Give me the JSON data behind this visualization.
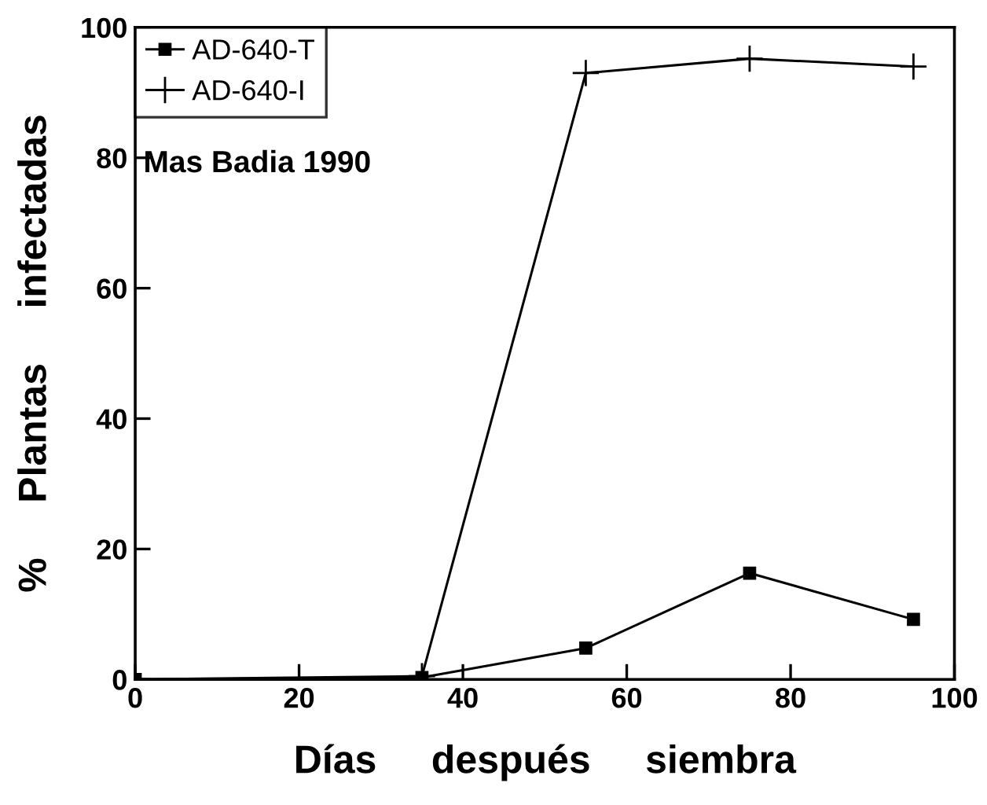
{
  "chart_data": {
    "type": "line",
    "xlabel": "Días     después     siembra",
    "ylabel": "%     Plantas     infectadas",
    "annotations": [
      "Mas Badia 1990"
    ],
    "xlim": [
      0,
      100
    ],
    "ylim": [
      0,
      100
    ],
    "xticks": [
      0,
      20,
      40,
      60,
      80,
      100
    ],
    "yticks": [
      0,
      20,
      40,
      60,
      80,
      100
    ],
    "grid": false,
    "legend": "top left",
    "series": [
      {
        "name": "AD-640-T",
        "color": "#000000",
        "marker": "square",
        "x": [
          0,
          35,
          55,
          75,
          95
        ],
        "values": [
          0,
          0.3,
          4.8,
          16.3,
          9.2
        ]
      },
      {
        "name": "AD-640-I",
        "color": "#000000",
        "marker": "cross",
        "x": [
          0,
          35,
          55,
          75,
          95
        ],
        "values": [
          0,
          0.5,
          93,
          95.2,
          94
        ]
      }
    ]
  }
}
